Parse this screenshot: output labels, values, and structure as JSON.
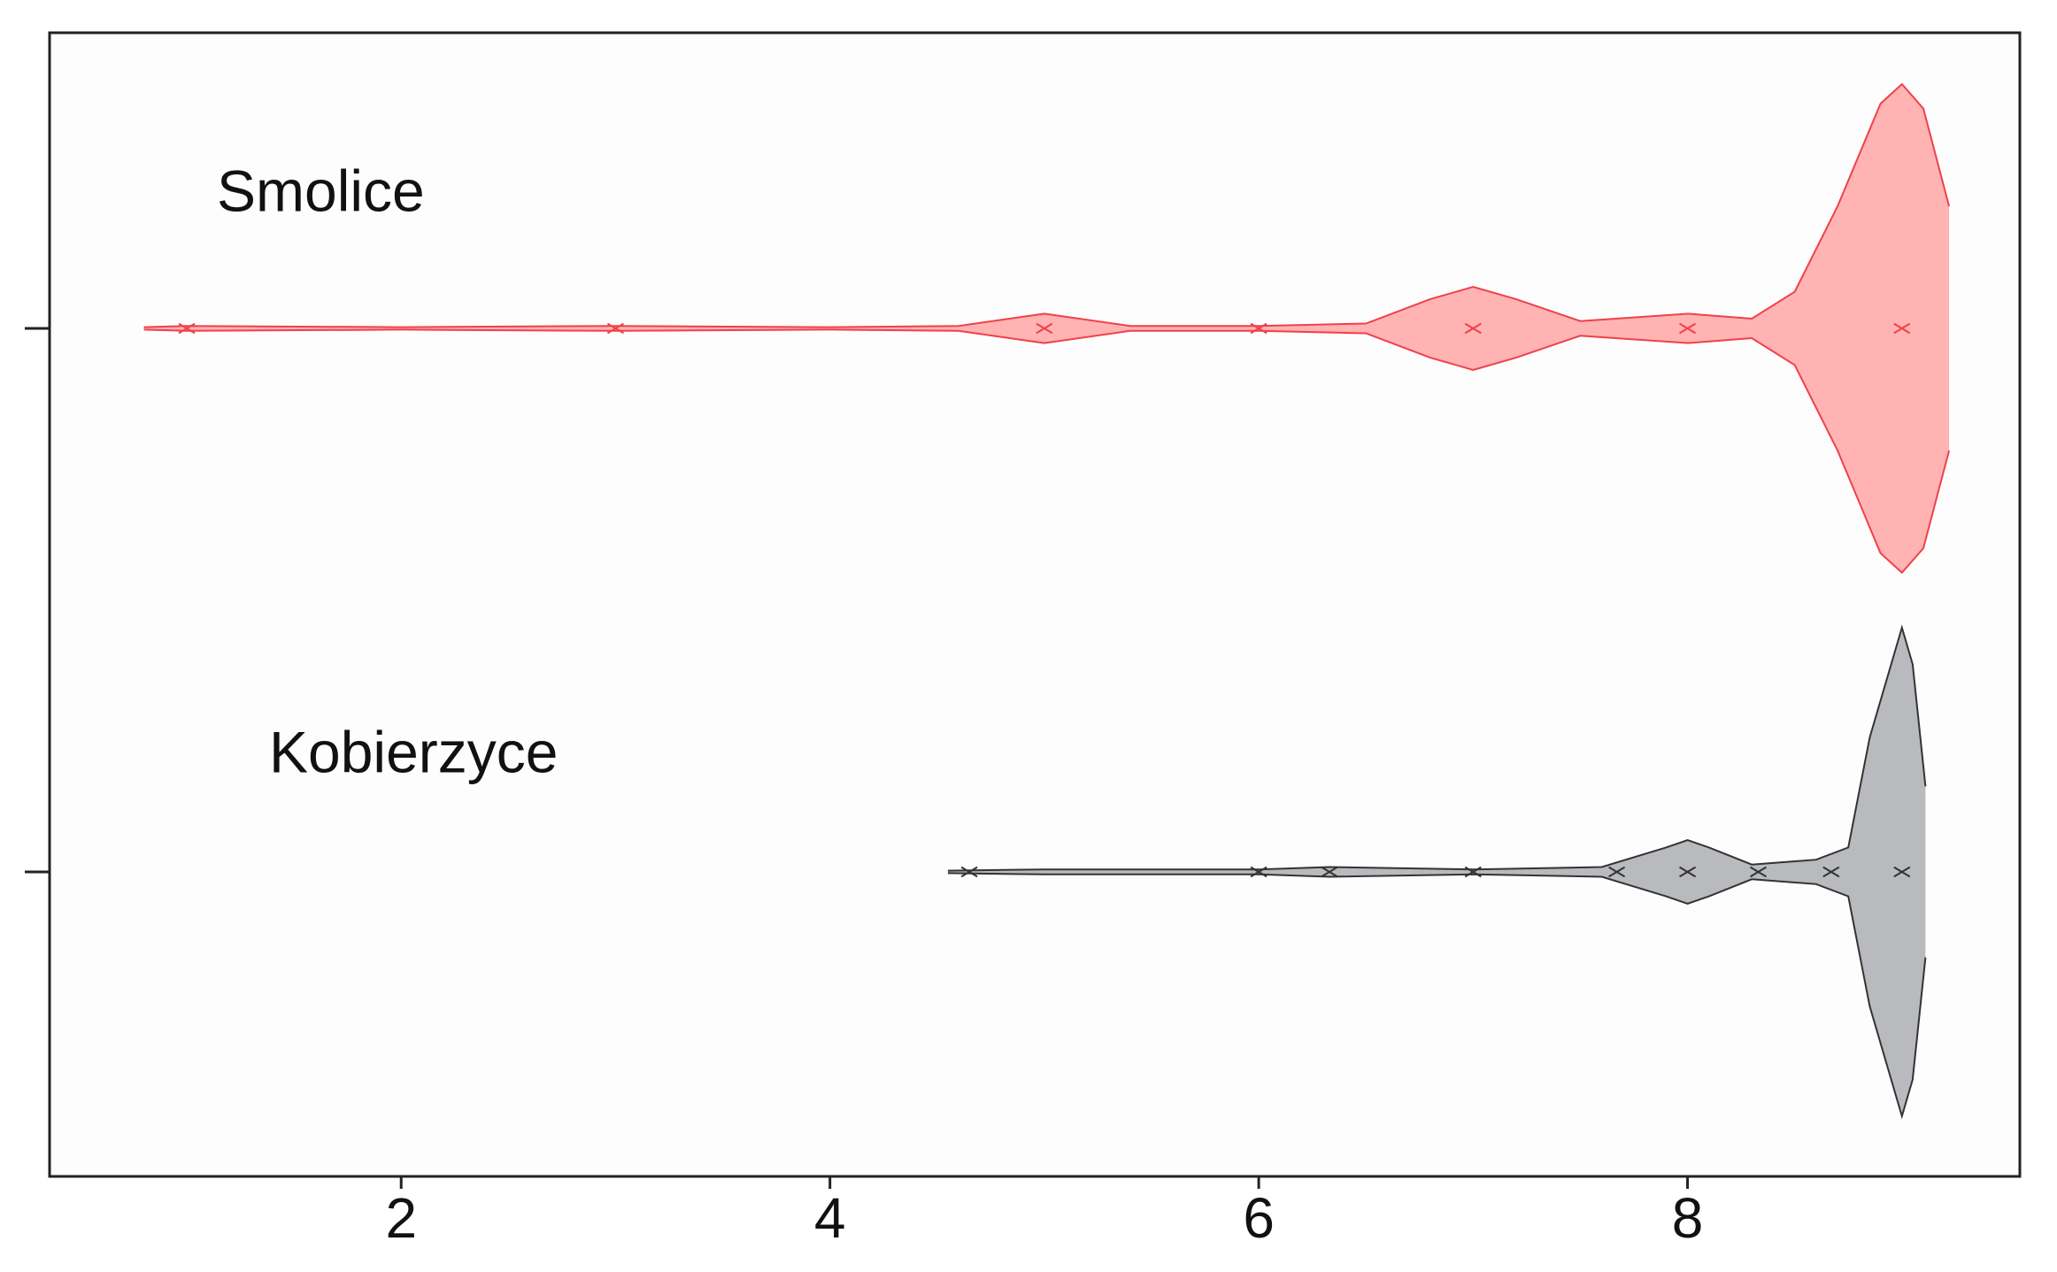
{
  "chart_data": {
    "type": "violin",
    "xlim": [
      0.36,
      9.55
    ],
    "xticks": [
      2,
      4,
      6,
      8
    ],
    "series": [
      {
        "name": "Smolice",
        "color": "#f0404a",
        "fill": "#ffb3b3",
        "points": [
          1,
          3,
          5,
          6,
          7,
          8,
          9
        ],
        "density": {
          "x": [
            0.8,
            1,
            2,
            3,
            4,
            4.6,
            5,
            5.4,
            6,
            6.5,
            6.8,
            7,
            7.2,
            7.5,
            8,
            8.3,
            8.5,
            8.7,
            8.9,
            9,
            9.1,
            9.22
          ],
          "values": [
            0.005,
            0.01,
            0.005,
            0.01,
            0.005,
            0.01,
            0.06,
            0.01,
            0.01,
            0.02,
            0.12,
            0.17,
            0.12,
            0.03,
            0.06,
            0.04,
            0.15,
            0.5,
            0.92,
            1,
            0.9,
            0.5
          ]
        }
      },
      {
        "name": "Kobierzyce",
        "color": "#333333",
        "fill": "#b8babd",
        "points": [
          4.65,
          6,
          6.33,
          7,
          7.67,
          8,
          8.33,
          8.67,
          9
        ],
        "density": {
          "x": [
            4.55,
            5,
            6,
            6.33,
            7,
            7.6,
            7.9,
            8,
            8.1,
            8.3,
            8.6,
            8.75,
            8.85,
            9,
            9.05,
            9.11
          ],
          "values": [
            0.005,
            0.01,
            0.01,
            0.02,
            0.01,
            0.02,
            0.1,
            0.13,
            0.1,
            0.03,
            0.05,
            0.1,
            0.55,
            1,
            0.85,
            0.35
          ]
        }
      }
    ]
  }
}
